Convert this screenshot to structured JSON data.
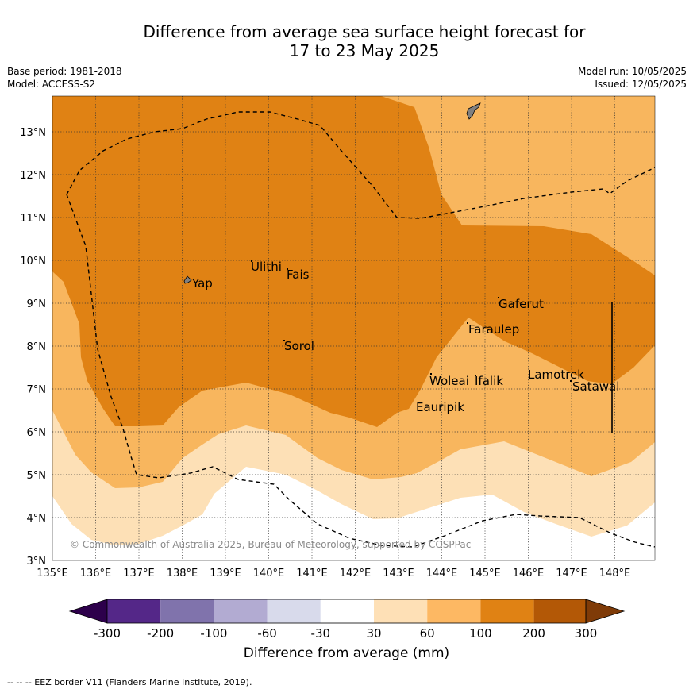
{
  "header": {
    "title_line1": "Difference from average sea surface height forecast for",
    "title_line2": "17 to 23 May 2025",
    "base_period": "Base period: 1981-2018",
    "model": "Model: ACCESS-S2",
    "model_run": "Model run: 10/05/2025",
    "issued": "Issued: 12/05/2025"
  },
  "map": {
    "longitude_labels": [
      "135°E",
      "136°E",
      "137°E",
      "138°E",
      "139°E",
      "140°E",
      "141°E",
      "142°E",
      "143°E",
      "144°E",
      "145°E",
      "146°E",
      "147°E",
      "148°E"
    ],
    "latitude_labels": [
      "3°N",
      "4°N",
      "5°N",
      "6°N",
      "7°N",
      "8°N",
      "9°N",
      "10°N",
      "11°N",
      "12°N",
      "13°N"
    ],
    "places": [
      "Yap",
      "Ulithi",
      "Fais",
      "Gaferut",
      "Faraulep",
      "Sorol",
      "Woleai",
      "Ifalik",
      "Lamotrek",
      "Satawal",
      "Eauripik"
    ],
    "copyright": "© Commonwealth of Australia 2025, Bureau of Meteorology, supported by COSPPac",
    "colors": {
      "band_30_60": "#fde0b6",
      "band_60_100": "#f8b65e",
      "band_100_200": "#e08214",
      "land": "#808080"
    }
  },
  "colorbar": {
    "ticks": [
      "-300",
      "-200",
      "-100",
      "-60",
      "-30",
      "30",
      "60",
      "100",
      "200",
      "300"
    ],
    "colors": [
      "#2d004b",
      "#542788",
      "#8073ac",
      "#b2abd2",
      "#d8daeb",
      "#ffffff",
      "#fee0b6",
      "#fdb863",
      "#e08214",
      "#b35806",
      "#7f3b08"
    ],
    "label": "Difference from average (mm)"
  },
  "footer": {
    "legend": "-- -- -- EEZ border V11 (Flanders Marine Institute, 2019)."
  }
}
